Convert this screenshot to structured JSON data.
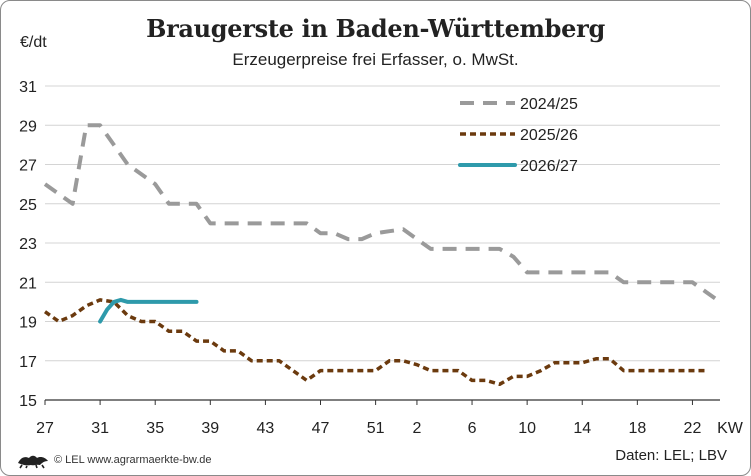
{
  "chart_data": {
    "type": "line",
    "title": "Braugerste in Baden-Württemberg",
    "subtitle": "Erzeugerpreise frei Erfasser, o. MwSt.",
    "ylabel": "€/dt",
    "xlabel": "KW",
    "ylim": [
      15,
      31
    ],
    "yticks": [
      "15",
      "17",
      "19",
      "21",
      "23",
      "25",
      "27",
      "29",
      "31"
    ],
    "x_ticks": [
      "27",
      "31",
      "35",
      "39",
      "43",
      "47",
      "51",
      "2",
      "6",
      "10",
      "14",
      "18",
      "22"
    ],
    "grid": true,
    "legend_position": "top-right",
    "series": [
      {
        "name": "2024/25",
        "color": "#9a9a9a",
        "style": "dashed",
        "x": [
          27,
          28,
          29,
          30,
          31,
          32,
          33,
          34,
          35,
          36,
          37,
          38,
          39,
          40,
          41,
          42,
          43,
          44,
          45,
          46,
          47,
          48,
          49,
          50,
          51,
          52,
          1,
          2,
          3,
          4,
          5,
          6,
          7,
          8,
          9,
          10,
          11,
          12,
          13,
          14,
          15,
          16,
          17,
          18,
          19,
          20,
          21,
          22,
          23,
          24
        ],
        "values": [
          26,
          25.5,
          25,
          29,
          29,
          28,
          27,
          26.5,
          26,
          25,
          25,
          25,
          24,
          24,
          24,
          24,
          24,
          24,
          24,
          24,
          23.5,
          23.5,
          23.2,
          23.2,
          23.5,
          23.6,
          23.7,
          23.2,
          22.7,
          22.7,
          22.7,
          22.7,
          22.7,
          22.7,
          22.3,
          21.5,
          21.5,
          21.5,
          21.5,
          21.5,
          21.5,
          21.5,
          21,
          21,
          21,
          21,
          21,
          21,
          20.5,
          20
        ]
      },
      {
        "name": "2025/26",
        "color": "#6b3a0e",
        "style": "dotted",
        "x": [
          27,
          28,
          29,
          30,
          31,
          32,
          33,
          34,
          35,
          36,
          37,
          38,
          39,
          40,
          41,
          42,
          43,
          44,
          45,
          46,
          47,
          48,
          49,
          50,
          51,
          52,
          1,
          2,
          3,
          4,
          5,
          6,
          7,
          8,
          9,
          10,
          11,
          12,
          13,
          14,
          15,
          16,
          17,
          18,
          19,
          20,
          21,
          22,
          23
        ],
        "values": [
          19.5,
          19,
          19.3,
          19.8,
          20.1,
          20,
          19.3,
          19,
          19,
          18.5,
          18.5,
          18,
          18,
          17.5,
          17.5,
          17,
          17,
          17,
          16.5,
          16,
          16.5,
          16.5,
          16.5,
          16.5,
          16.5,
          17,
          17,
          16.8,
          16.5,
          16.5,
          16.5,
          16,
          16,
          15.8,
          16.2,
          16.2,
          16.5,
          16.9,
          16.9,
          16.9,
          17.1,
          17.1,
          16.5,
          16.5,
          16.5,
          16.5,
          16.5,
          16.5,
          16.5
        ]
      },
      {
        "name": "2026/27",
        "color": "#2e9aab",
        "style": "solid",
        "x": [
          31,
          31.5,
          32,
          32.5,
          33,
          34,
          35,
          36,
          37,
          38
        ],
        "values": [
          19,
          19.6,
          20,
          20.1,
          20,
          20,
          20,
          20,
          20,
          20
        ]
      }
    ]
  },
  "footer": {
    "credit": "© LEL www.agrarmaerkte-bw.de",
    "source": "Daten: LEL; LBV"
  }
}
